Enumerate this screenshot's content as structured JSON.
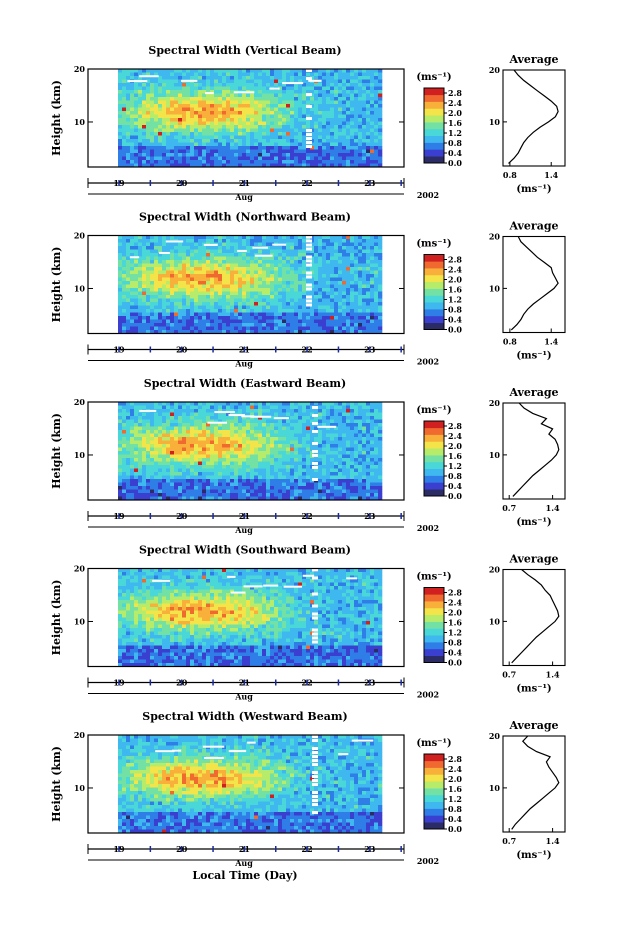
{
  "figure": {
    "x_axis_label": "Local Time (Day)",
    "month_label": "Aug",
    "year_label": "2002"
  },
  "colorbar": {
    "unit": "(ms⁻¹)",
    "ticks": [
      "0.0",
      "0.4",
      "0.8",
      "1.2",
      "1.6",
      "2.0",
      "2.4",
      "2.8"
    ],
    "colors": [
      "#2b2b66",
      "#3b3fd0",
      "#2f7ee8",
      "#3fb8f0",
      "#49d7d7",
      "#74e1a4",
      "#b6ec6a",
      "#f3e44a",
      "#f8b03a",
      "#f06a30",
      "#d02020"
    ]
  },
  "chart_data": [
    {
      "type": "heatmap",
      "title": "Spectral Width (Vertical Beam)",
      "ylabel": "Height (km)",
      "y_ticks": [
        "10",
        "20"
      ],
      "x_ticks": [
        "19",
        "20",
        "21",
        "22",
        "23"
      ],
      "ylim": [
        1.5,
        20
      ],
      "colorbar_range": [
        0.0,
        3.0
      ],
      "average_profile": {
        "title": "Average",
        "xlabel": "(ms⁻¹)",
        "x_ticks": [
          "0.8",
          "1.4"
        ],
        "xlim": [
          0.7,
          1.6
        ],
        "heights": [
          2,
          3,
          4,
          5,
          6,
          7,
          8,
          9,
          10,
          11,
          12,
          13,
          14,
          15,
          16,
          17,
          18,
          19,
          20
        ],
        "values": [
          0.78,
          0.86,
          0.92,
          0.96,
          1.0,
          1.06,
          1.14,
          1.24,
          1.36,
          1.46,
          1.5,
          1.48,
          1.4,
          1.3,
          1.2,
          1.1,
          1.0,
          0.92,
          0.86
        ]
      }
    },
    {
      "type": "heatmap",
      "title": "Spectral Width (Northward Beam)",
      "ylabel": "Height (km)",
      "y_ticks": [
        "10",
        "20"
      ],
      "x_ticks": [
        "19",
        "20",
        "21",
        "22",
        "23"
      ],
      "ylim": [
        1.5,
        20
      ],
      "colorbar_range": [
        0.0,
        3.0
      ],
      "average_profile": {
        "title": "Average",
        "xlabel": "(ms⁻¹)",
        "x_ticks": [
          "0.8",
          "1.4"
        ],
        "xlim": [
          0.7,
          1.6
        ],
        "heights": [
          2,
          3,
          4,
          5,
          6,
          7,
          8,
          9,
          10,
          11,
          12,
          13,
          14,
          15,
          16,
          17,
          18,
          19,
          20
        ],
        "values": [
          0.82,
          0.9,
          0.96,
          1.0,
          1.06,
          1.14,
          1.24,
          1.34,
          1.44,
          1.5,
          1.46,
          1.42,
          1.4,
          1.3,
          1.2,
          1.12,
          1.04,
          0.96,
          0.92
        ]
      }
    },
    {
      "type": "heatmap",
      "title": "Spectral Width (Eastward Beam)",
      "ylabel": "Height (km)",
      "y_ticks": [
        "10",
        "20"
      ],
      "x_ticks": [
        "19",
        "20",
        "21",
        "22",
        "23"
      ],
      "ylim": [
        1.5,
        20
      ],
      "colorbar_range": [
        0.0,
        3.0
      ],
      "average_profile": {
        "title": "Average",
        "xlabel": "(ms⁻¹)",
        "x_ticks": [
          "0.7",
          "1.4"
        ],
        "xlim": [
          0.6,
          1.6
        ],
        "heights": [
          2,
          3,
          4,
          5,
          6,
          7,
          8,
          9,
          10,
          11,
          12,
          13,
          14,
          15,
          16,
          17,
          18,
          19,
          20
        ],
        "values": [
          0.76,
          0.84,
          0.92,
          1.0,
          1.08,
          1.18,
          1.28,
          1.38,
          1.46,
          1.5,
          1.48,
          1.44,
          1.34,
          1.4,
          1.22,
          1.3,
          1.08,
          0.94,
          0.86
        ]
      }
    },
    {
      "type": "heatmap",
      "title": "Spectral Width (Southward Beam)",
      "ylabel": "Height (km)",
      "y_ticks": [
        "10",
        "20"
      ],
      "x_ticks": [
        "19",
        "20",
        "21",
        "22",
        "23"
      ],
      "ylim": [
        1.5,
        20
      ],
      "colorbar_range": [
        0.0,
        3.0
      ],
      "average_profile": {
        "title": "Average",
        "xlabel": "(ms⁻¹)",
        "x_ticks": [
          "0.7",
          "1.4"
        ],
        "xlim": [
          0.6,
          1.6
        ],
        "heights": [
          2,
          3,
          4,
          5,
          6,
          7,
          8,
          9,
          10,
          11,
          12,
          13,
          14,
          15,
          16,
          17,
          18,
          19,
          20
        ],
        "values": [
          0.74,
          0.82,
          0.9,
          0.98,
          1.06,
          1.14,
          1.24,
          1.34,
          1.44,
          1.5,
          1.48,
          1.44,
          1.4,
          1.36,
          1.28,
          1.22,
          1.12,
          1.0,
          0.9
        ]
      }
    },
    {
      "type": "heatmap",
      "title": "Spectral Width (Westward Beam)",
      "ylabel": "Height (km)",
      "y_ticks": [
        "10",
        "20"
      ],
      "x_ticks": [
        "19",
        "20",
        "21",
        "22",
        "23"
      ],
      "ylim": [
        1.5,
        20
      ],
      "colorbar_range": [
        0.0,
        3.0
      ],
      "average_profile": {
        "title": "Average",
        "xlabel": "(ms⁻¹)",
        "x_ticks": [
          "0.7",
          "1.4"
        ],
        "xlim": [
          0.6,
          1.6
        ],
        "heights": [
          2,
          3,
          4,
          5,
          6,
          7,
          8,
          9,
          10,
          11,
          12,
          13,
          14,
          15,
          16,
          17,
          18,
          19,
          20
        ],
        "values": [
          0.74,
          0.8,
          0.88,
          0.96,
          1.04,
          1.14,
          1.24,
          1.34,
          1.44,
          1.5,
          1.46,
          1.4,
          1.34,
          1.3,
          1.36,
          1.14,
          1.0,
          0.92,
          1.0
        ]
      }
    }
  ]
}
